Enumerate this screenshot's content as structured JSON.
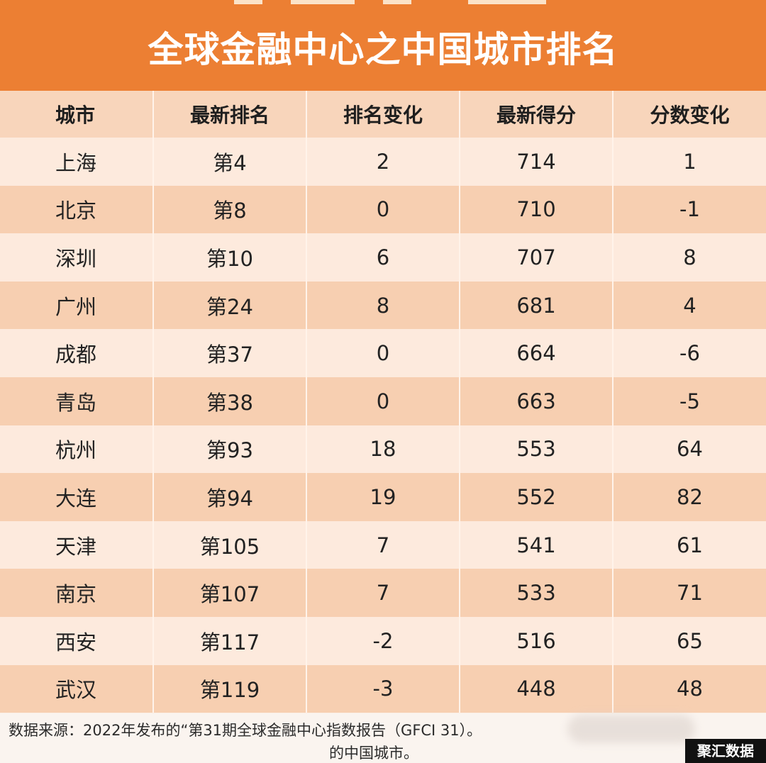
{
  "title": "全球金融中心之中国城市排名",
  "columns": [
    "城市",
    "最新排名",
    "排名变化",
    "最新得分",
    "分数变化"
  ],
  "rows": [
    [
      "上海",
      "第4",
      "2",
      "714",
      "1"
    ],
    [
      "北京",
      "第8",
      "0",
      "710",
      "-1"
    ],
    [
      "深圳",
      "第10",
      "6",
      "707",
      "8"
    ],
    [
      "广州",
      "第24",
      "8",
      "681",
      "4"
    ],
    [
      "成都",
      "第37",
      "0",
      "664",
      "-6"
    ],
    [
      "青岛",
      "第38",
      "0",
      "663",
      "-5"
    ],
    [
      "杭州",
      "第93",
      "18",
      "553",
      "64"
    ],
    [
      "大连",
      "第94",
      "19",
      "552",
      "82"
    ],
    [
      "天津",
      "第105",
      "7",
      "541",
      "61"
    ],
    [
      "南京",
      "第107",
      "7",
      "533",
      "71"
    ],
    [
      "西安",
      "第117",
      "-2",
      "516",
      "65"
    ],
    [
      "武汉",
      "第119",
      "-3",
      "448",
      "48"
    ]
  ],
  "footer": {
    "source_line1": "数据来源：2022年发布的“第31期全球金融中心指数报告（GFCI 31）。",
    "source_line2": "的中国城市。",
    "watermark": "聚汇数据"
  }
}
